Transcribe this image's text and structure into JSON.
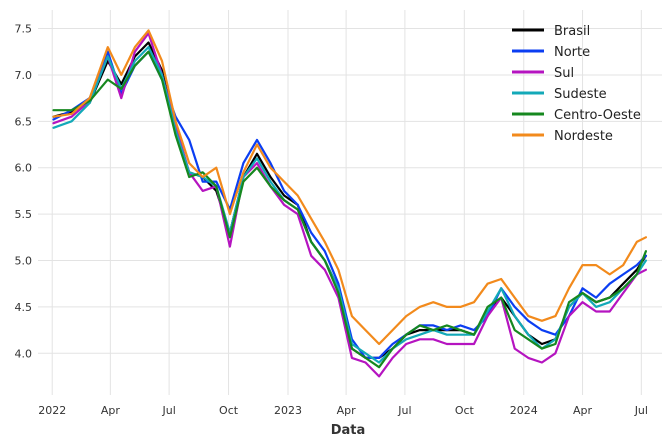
{
  "chart_data": {
    "type": "line",
    "xlabel": "Data",
    "ylabel": "",
    "ylim": [
      3.55,
      7.7
    ],
    "xlim": [
      "2021-12-10",
      "2024-08-02"
    ],
    "grid": true,
    "legend_position": "top-right",
    "x_ticks": [
      {
        "date": "2022-01-01",
        "label": "2022"
      },
      {
        "date": "2022-04-01",
        "label": "Apr"
      },
      {
        "date": "2022-07-01",
        "label": "Jul"
      },
      {
        "date": "2022-10-01",
        "label": "Oct"
      },
      {
        "date": "2023-01-01",
        "label": "2023"
      },
      {
        "date": "2023-04-01",
        "label": "Apr"
      },
      {
        "date": "2023-07-01",
        "label": "Jul"
      },
      {
        "date": "2023-10-01",
        "label": "Oct"
      },
      {
        "date": "2024-01-01",
        "label": "2024"
      },
      {
        "date": "2024-04-01",
        "label": "Apr"
      },
      {
        "date": "2024-07-01",
        "label": "Jul"
      }
    ],
    "y_ticks": [
      {
        "value": 4.0,
        "label": "4.0"
      },
      {
        "value": 4.5,
        "label": "4.5"
      },
      {
        "value": 5.0,
        "label": "5.0"
      },
      {
        "value": 5.5,
        "label": "5.5"
      },
      {
        "value": 6.0,
        "label": "6.0"
      },
      {
        "value": 6.5,
        "label": "6.5"
      },
      {
        "value": 7.0,
        "label": "7.0"
      },
      {
        "value": 7.5,
        "label": "7.5"
      }
    ],
    "x": [
      "2022-01-03",
      "2022-01-31",
      "2022-02-28",
      "2022-03-28",
      "2022-04-18",
      "2022-05-09",
      "2022-05-30",
      "2022-06-20",
      "2022-07-11",
      "2022-08-01",
      "2022-08-22",
      "2022-09-12",
      "2022-10-03",
      "2022-10-24",
      "2022-11-14",
      "2022-12-05",
      "2022-12-26",
      "2023-01-16",
      "2023-02-06",
      "2023-02-27",
      "2023-03-20",
      "2023-04-10",
      "2023-05-01",
      "2023-05-22",
      "2023-06-12",
      "2023-07-03",
      "2023-07-24",
      "2023-08-14",
      "2023-09-04",
      "2023-09-25",
      "2023-10-16",
      "2023-11-06",
      "2023-11-27",
      "2023-12-18",
      "2024-01-08",
      "2024-01-29",
      "2024-02-19",
      "2024-03-11",
      "2024-04-01",
      "2024-04-22",
      "2024-05-13",
      "2024-06-03",
      "2024-06-24",
      "2024-07-08"
    ],
    "series": [
      {
        "name": "Brasil",
        "color": "#000000",
        "values": [
          6.55,
          6.6,
          6.7,
          7.15,
          6.9,
          7.2,
          7.35,
          7.05,
          6.4,
          5.95,
          5.9,
          5.75,
          5.3,
          5.9,
          6.15,
          5.9,
          5.7,
          5.6,
          5.2,
          5.0,
          4.7,
          4.05,
          3.95,
          3.95,
          4.05,
          4.2,
          4.25,
          4.25,
          4.25,
          4.25,
          4.2,
          4.45,
          4.6,
          4.4,
          4.2,
          4.1,
          4.15,
          4.5,
          4.65,
          4.55,
          4.6,
          4.75,
          4.9,
          5.05
        ]
      },
      {
        "name": "Norte",
        "color": "#0b3ef2",
        "values": [
          6.52,
          6.62,
          6.75,
          7.25,
          6.8,
          7.1,
          7.25,
          6.95,
          6.55,
          6.3,
          5.85,
          5.85,
          5.55,
          6.05,
          6.3,
          6.05,
          5.75,
          5.6,
          5.3,
          5.1,
          4.75,
          4.15,
          3.95,
          3.95,
          4.1,
          4.2,
          4.3,
          4.3,
          4.25,
          4.3,
          4.25,
          4.4,
          4.7,
          4.5,
          4.35,
          4.25,
          4.2,
          4.4,
          4.7,
          4.6,
          4.75,
          4.85,
          4.95,
          5.05
        ]
      },
      {
        "name": "Sul",
        "color": "#b514c0",
        "values": [
          6.48,
          6.55,
          6.72,
          7.2,
          6.75,
          7.25,
          7.45,
          7.0,
          6.45,
          5.95,
          5.75,
          5.8,
          5.15,
          5.9,
          6.05,
          5.8,
          5.6,
          5.5,
          5.05,
          4.9,
          4.6,
          3.95,
          3.9,
          3.75,
          3.95,
          4.1,
          4.15,
          4.15,
          4.1,
          4.1,
          4.1,
          4.4,
          4.6,
          4.05,
          3.95,
          3.9,
          4.0,
          4.4,
          4.55,
          4.45,
          4.45,
          4.65,
          4.85,
          4.9
        ]
      },
      {
        "name": "Sudeste",
        "color": "#13a9b8",
        "values": [
          6.43,
          6.5,
          6.7,
          7.2,
          6.85,
          7.15,
          7.3,
          7.0,
          6.4,
          5.95,
          5.9,
          5.8,
          5.3,
          5.9,
          6.1,
          5.85,
          5.65,
          5.55,
          5.2,
          5.0,
          4.7,
          4.1,
          4.0,
          3.9,
          4.05,
          4.15,
          4.2,
          4.25,
          4.2,
          4.2,
          4.2,
          4.45,
          4.7,
          4.4,
          4.2,
          4.05,
          4.15,
          4.5,
          4.65,
          4.5,
          4.55,
          4.7,
          4.85,
          5.0
        ]
      },
      {
        "name": "Centro-Oeste",
        "color": "#16881f",
        "values": [
          6.62,
          6.62,
          6.72,
          6.95,
          6.85,
          7.1,
          7.25,
          6.95,
          6.35,
          5.9,
          5.95,
          5.8,
          5.25,
          5.85,
          6.0,
          5.8,
          5.65,
          5.55,
          5.2,
          5.0,
          4.65,
          4.05,
          3.95,
          3.85,
          4.05,
          4.2,
          4.3,
          4.25,
          4.3,
          4.25,
          4.2,
          4.5,
          4.6,
          4.25,
          4.15,
          4.05,
          4.1,
          4.55,
          4.65,
          4.55,
          4.6,
          4.7,
          4.85,
          5.1
        ]
      },
      {
        "name": "Nordeste",
        "color": "#f28a1c",
        "values": [
          6.55,
          6.58,
          6.75,
          7.3,
          7.0,
          7.3,
          7.48,
          7.15,
          6.5,
          6.05,
          5.9,
          6.0,
          5.5,
          5.95,
          6.25,
          6.0,
          5.85,
          5.7,
          5.45,
          5.2,
          4.9,
          4.4,
          4.25,
          4.1,
          4.25,
          4.4,
          4.5,
          4.55,
          4.5,
          4.5,
          4.55,
          4.75,
          4.8,
          4.6,
          4.4,
          4.35,
          4.4,
          4.7,
          4.95,
          4.95,
          4.85,
          4.95,
          5.2,
          5.25
        ]
      }
    ]
  }
}
